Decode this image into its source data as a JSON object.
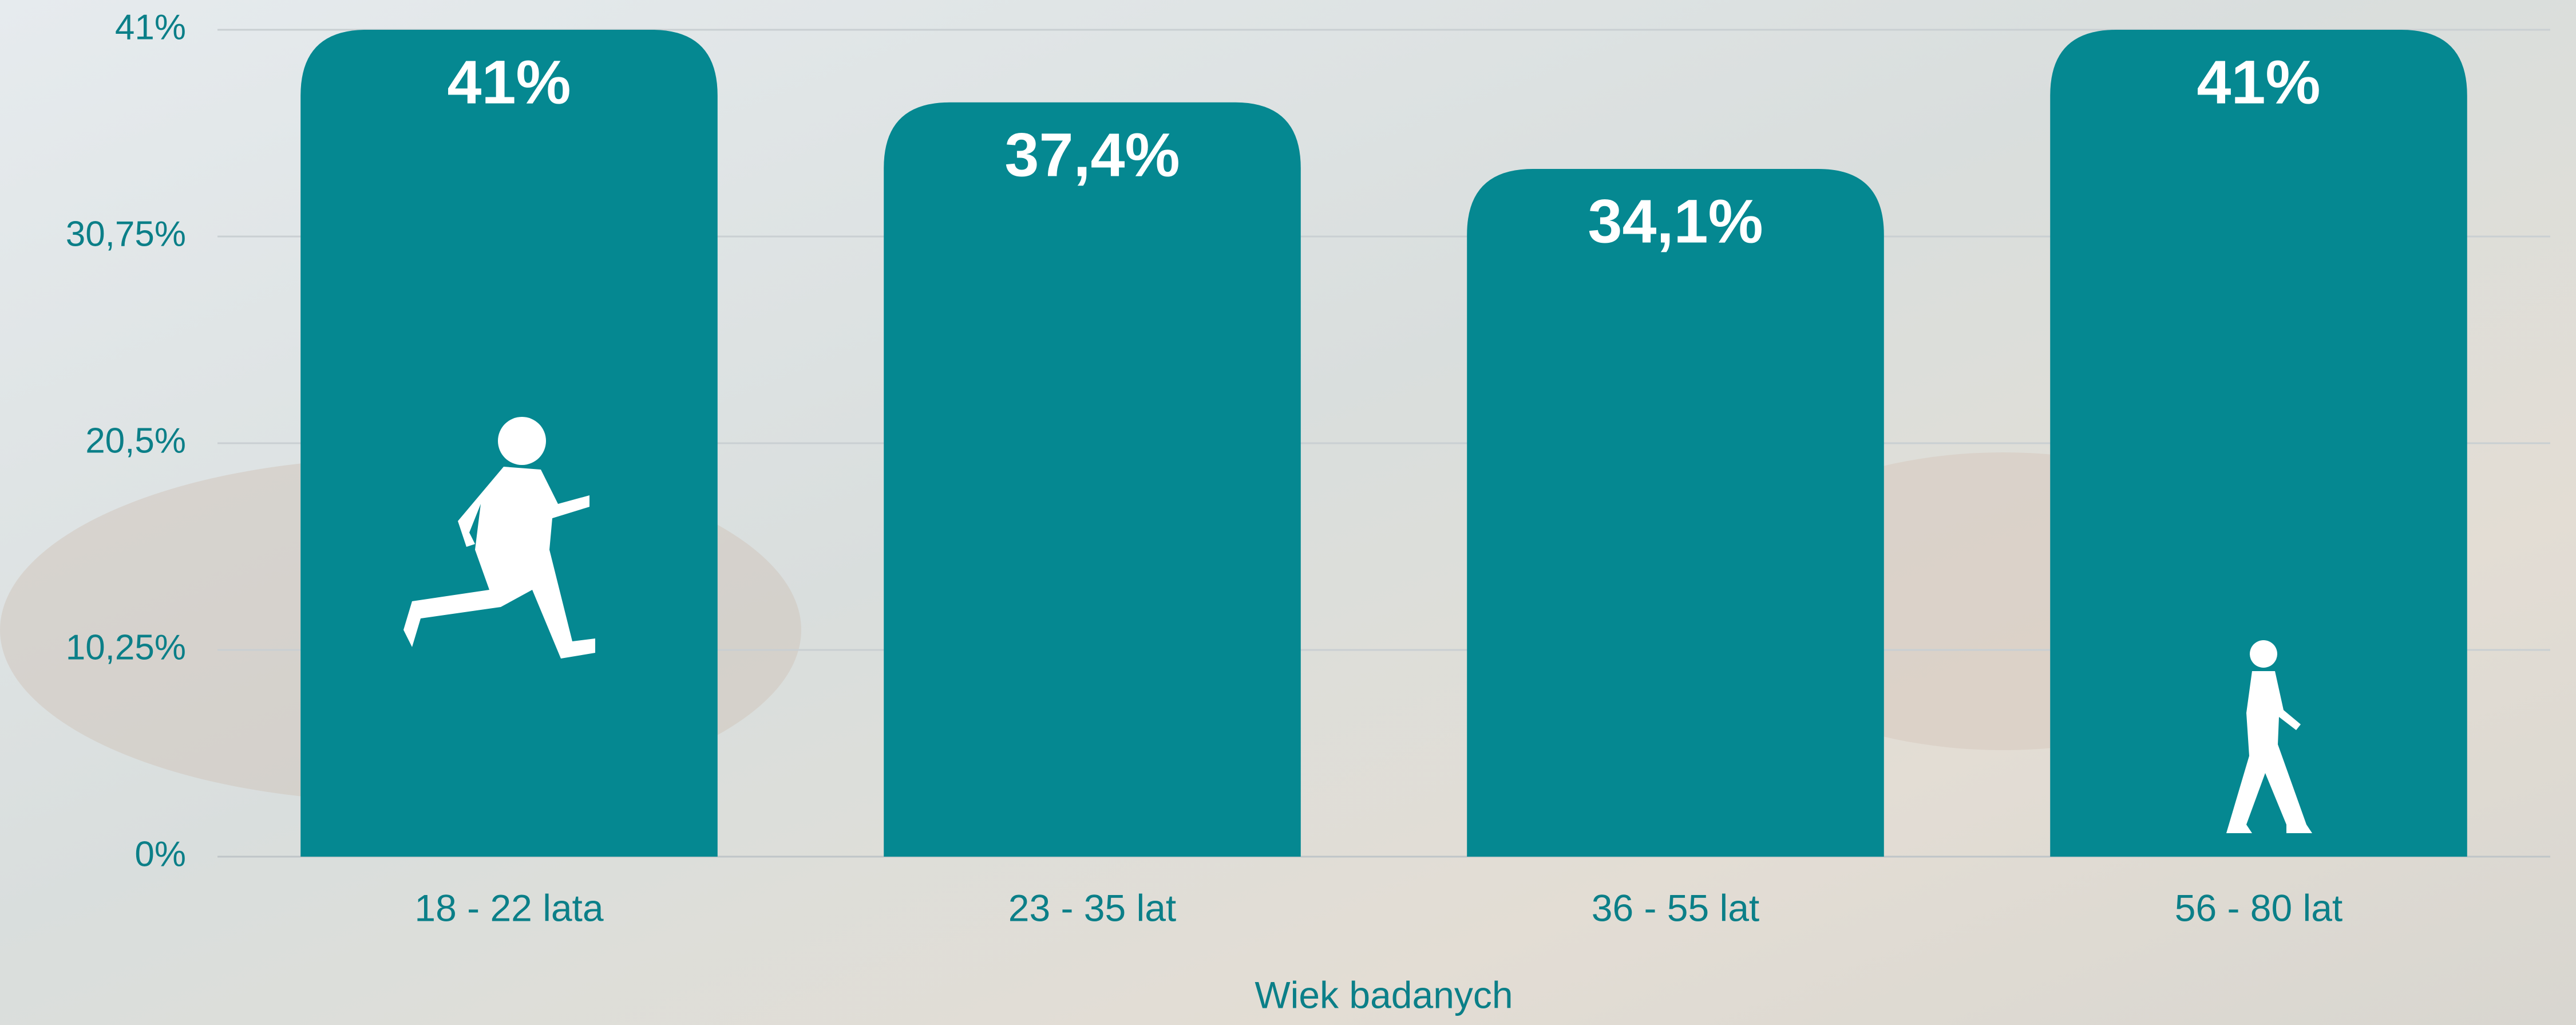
{
  "chart_data": {
    "type": "bar",
    "x_label": "Wiek badanych",
    "categories": [
      "18 - 22 lata",
      "23 - 35 lat",
      "36 - 55 lat",
      "56 - 80 lat"
    ],
    "values": [
      41,
      37.4,
      34.1,
      41
    ],
    "value_labels": [
      "41%",
      "37,4%",
      "34,1%",
      "41%"
    ],
    "color": "#058891",
    "ylim": [
      0,
      41
    ],
    "yticks": [
      {
        "value": 0,
        "label": "0%"
      },
      {
        "value": 10.25,
        "label": "10,25%"
      },
      {
        "value": 20.5,
        "label": "20,5%"
      },
      {
        "value": 30.75,
        "label": "30,75%"
      },
      {
        "value": 41,
        "label": "41%"
      }
    ],
    "grid": true
  }
}
